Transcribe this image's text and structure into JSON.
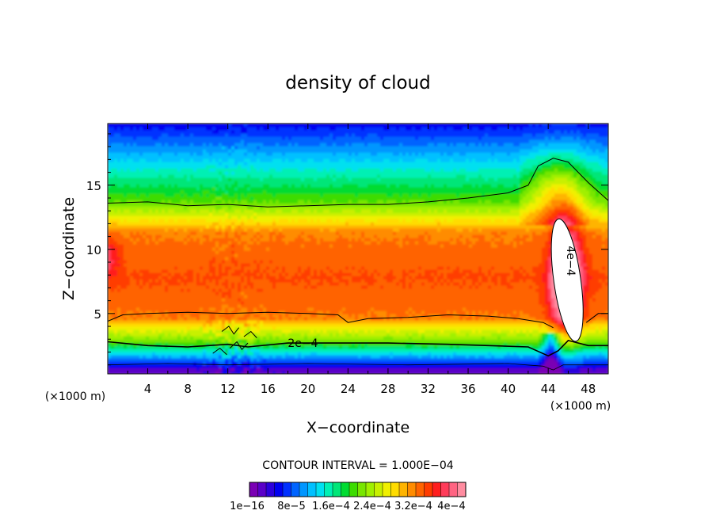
{
  "chart_data": {
    "type": "heatmap",
    "title": "density of cloud",
    "xlabel": "X−coordinate",
    "ylabel": "Z−coordinate",
    "x_unit_left": "(×1000 m)",
    "x_unit_right": "(×1000 m)",
    "xlim": [
      0,
      50
    ],
    "ylim": [
      0.3,
      19.8
    ],
    "x_ticks": [
      4,
      8,
      12,
      16,
      20,
      24,
      28,
      32,
      36,
      40,
      44,
      48
    ],
    "y_ticks": [
      5,
      10,
      15
    ],
    "contour_interval_text": "CONTOUR INTERVAL = 1.000E−04",
    "contour_interval": 0.0001,
    "contour_labels": [
      "2e−4",
      "4e−4"
    ],
    "colorbar": {
      "tick_labels": [
        "1e−16",
        "8e−5",
        "1.6e−4",
        "2.4e−4",
        "3.2e−4",
        "4e−4"
      ],
      "tick_values": [
        1e-16,
        8e-05,
        0.00016,
        0.00024,
        0.00032,
        0.0004
      ],
      "colors": [
        "#7a00b4",
        "#5a00c8",
        "#2c00dc",
        "#0000f0",
        "#0030ff",
        "#0064ff",
        "#0096ff",
        "#00c0ff",
        "#00e0f0",
        "#00f0b4",
        "#00e678",
        "#00dc32",
        "#3cdc00",
        "#78e600",
        "#a0f000",
        "#c8f000",
        "#f0f000",
        "#ffdc00",
        "#ffb400",
        "#ff8c00",
        "#ff6400",
        "#ff3c00",
        "#ff1e1e",
        "#ff3c5a",
        "#ff6482",
        "#ff8ca0"
      ]
    },
    "grid": false,
    "legend": "bottom-colorbar"
  }
}
